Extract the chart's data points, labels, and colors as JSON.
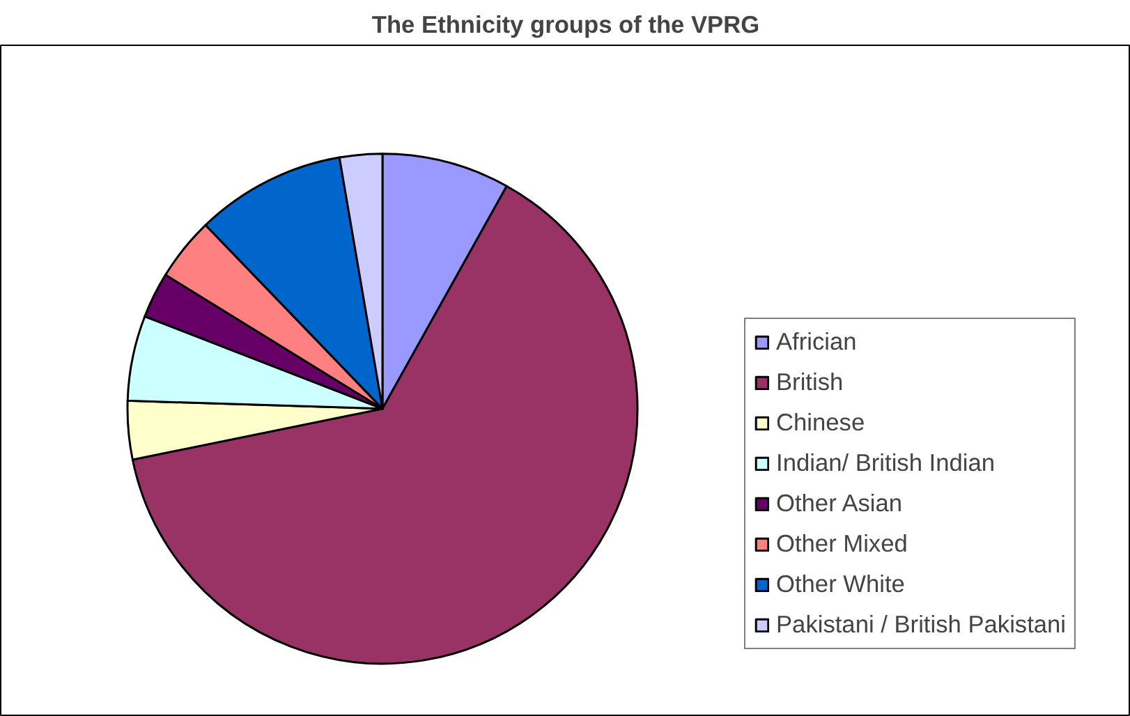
{
  "chart_data": {
    "type": "pie",
    "title": "The Ethnicity groups of the VPRG",
    "categories": [
      "Africian",
      "British",
      "Chinese",
      "Indian/ British Indian",
      "Other Asian",
      "Other Mixed",
      "Other White",
      "Pakistani / British Pakistani"
    ],
    "values": [
      8.1,
      63.7,
      3.7,
      5.4,
      2.9,
      4.0,
      9.5,
      2.7
    ],
    "colors": [
      "#9999ff",
      "#993366",
      "#ffffcc",
      "#ccffff",
      "#660066",
      "#ff8080",
      "#0066cc",
      "#ccccff"
    ],
    "legend": "right"
  }
}
